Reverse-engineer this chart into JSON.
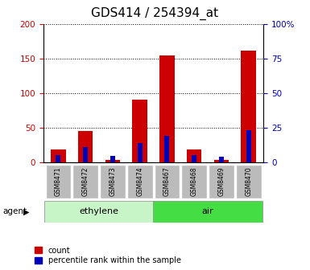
{
  "title": "GDS414 / 254394_at",
  "categories": [
    "GSM8471",
    "GSM8472",
    "GSM8473",
    "GSM8474",
    "GSM8467",
    "GSM8468",
    "GSM8469",
    "GSM8470"
  ],
  "red_values": [
    18,
    45,
    3,
    90,
    155,
    18,
    3,
    162
  ],
  "blue_values": [
    10,
    22,
    9,
    28,
    38,
    10,
    8,
    46
  ],
  "ylim_left": [
    0,
    200
  ],
  "ylim_right": [
    0,
    100
  ],
  "yticks_left": [
    0,
    50,
    100,
    150,
    200
  ],
  "ytick_labels_left": [
    "0",
    "50",
    "100",
    "150",
    "200"
  ],
  "yticks_right": [
    0,
    25,
    50,
    75,
    100
  ],
  "ytick_labels_right": [
    "0",
    "25",
    "50",
    "75",
    "100%"
  ],
  "groups": [
    {
      "label": "ethylene",
      "start": 0,
      "end": 4,
      "color": "#c8f5c8"
    },
    {
      "label": "air",
      "start": 4,
      "end": 8,
      "color": "#44dd44"
    }
  ],
  "group_row_label": "agent",
  "bar_color_red": "#cc0000",
  "bar_color_blue": "#0000bb",
  "bar_width": 0.55,
  "blue_bar_width": 0.18,
  "tick_label_area_color": "#bbbbbb",
  "grid_color": "#000000",
  "legend_items": [
    "count",
    "percentile rank within the sample"
  ],
  "title_fontsize": 11,
  "axis_label_color_left": "#cc0000",
  "axis_label_color_right": "#0000bb"
}
